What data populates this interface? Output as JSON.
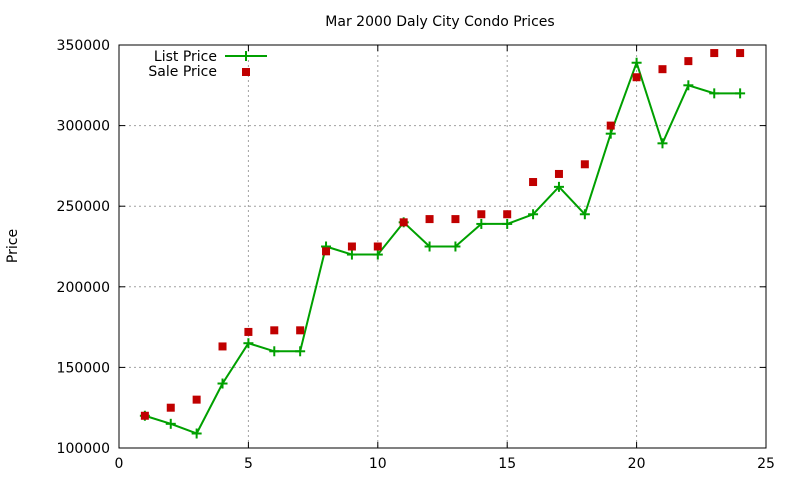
{
  "chart_data": {
    "type": "line",
    "title": "Mar 2000 Daly City Condo Prices",
    "xlabel": "",
    "ylabel": "Price",
    "xlim": [
      0,
      25
    ],
    "ylim": [
      100000,
      350000
    ],
    "x_ticks": [
      0,
      5,
      10,
      15,
      20,
      25
    ],
    "y_ticks": [
      100000,
      150000,
      200000,
      250000,
      300000,
      350000
    ],
    "grid": true,
    "legend_position": "top-left",
    "series": [
      {
        "name": "List Price",
        "style": "linespoints",
        "marker": "plus",
        "color": "#00a000",
        "x": [
          1,
          2,
          3,
          4,
          5,
          6,
          7,
          8,
          9,
          10,
          11,
          12,
          13,
          14,
          15,
          16,
          17,
          18,
          19,
          20,
          21,
          22,
          23,
          24
        ],
        "values": [
          120000,
          115000,
          109000,
          140000,
          165000,
          160000,
          160000,
          225000,
          220000,
          220000,
          240000,
          225000,
          225000,
          239000,
          239000,
          245000,
          262000,
          245000,
          295000,
          339000,
          289000,
          325000,
          320000,
          320000
        ]
      },
      {
        "name": "Sale Price",
        "style": "points",
        "marker": "square",
        "color": "#c00000",
        "x": [
          1,
          2,
          3,
          4,
          5,
          6,
          7,
          8,
          9,
          10,
          11,
          12,
          13,
          14,
          15,
          16,
          17,
          18,
          19,
          20,
          21,
          22,
          23,
          24
        ],
        "values": [
          120000,
          125000,
          130000,
          163000,
          172000,
          173000,
          173000,
          222000,
          225000,
          225000,
          240000,
          242000,
          242000,
          245000,
          245000,
          265000,
          270000,
          276000,
          300000,
          330000,
          335000,
          340000,
          345000,
          345000
        ]
      }
    ]
  }
}
